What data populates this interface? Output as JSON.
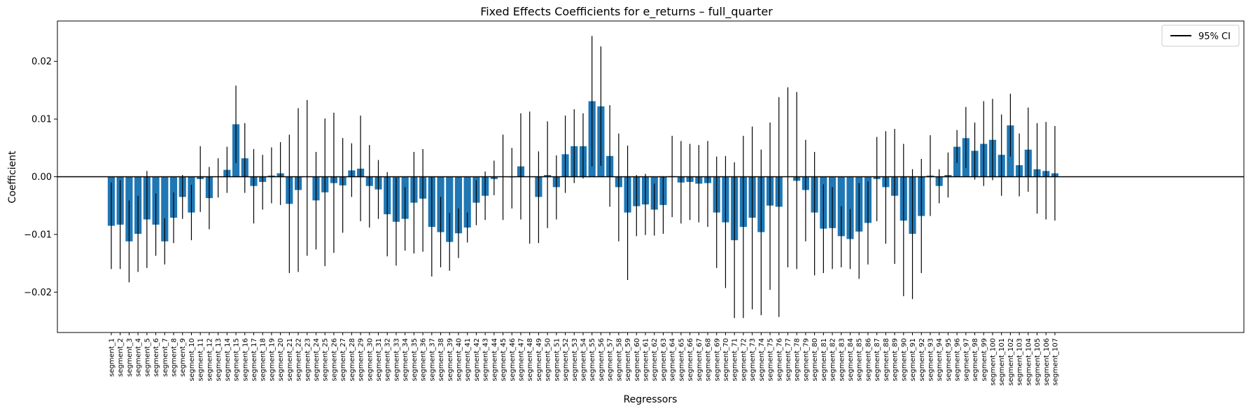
{
  "chart_data": {
    "type": "bar",
    "title": "Fixed Effects Coefficients for e_returns – full_quarter",
    "xlabel": "Regressors",
    "ylabel": "Coefficient",
    "ylim": [
      -0.027,
      0.027
    ],
    "yticks": [
      -0.02,
      -0.01,
      0.0,
      0.01,
      0.02
    ],
    "ytick_labels": [
      "−0.02",
      "−0.01",
      "0.00",
      "0.01",
      "0.02"
    ],
    "bar_color": "#1f77b4",
    "errorbar_color": "#000000",
    "legend": {
      "label": "95% CI",
      "placement": "top-right"
    },
    "categories": [
      "segment_1",
      "segment_2",
      "segment_3",
      "segment_4",
      "segment_5",
      "segment_6",
      "segment_7",
      "segment_8",
      "segment_9",
      "segment_10",
      "segment_11",
      "segment_12",
      "segment_13",
      "segment_14",
      "segment_15",
      "segment_16",
      "segment_17",
      "segment_18",
      "segment_19",
      "segment_20",
      "segment_21",
      "segment_22",
      "segment_23",
      "segment_24",
      "segment_25",
      "segment_26",
      "segment_27",
      "segment_28",
      "segment_29",
      "segment_30",
      "segment_31",
      "segment_32",
      "segment_33",
      "segment_34",
      "segment_35",
      "segment_36",
      "segment_37",
      "segment_38",
      "segment_39",
      "segment_40",
      "segment_41",
      "segment_42",
      "segment_43",
      "segment_44",
      "segment_45",
      "segment_46",
      "segment_47",
      "segment_48",
      "segment_49",
      "segment_50",
      "segment_51",
      "segment_52",
      "segment_53",
      "segment_54",
      "segment_55",
      "segment_56",
      "segment_57",
      "segment_58",
      "segment_59",
      "segment_60",
      "segment_61",
      "segment_62",
      "segment_63",
      "segment_64",
      "segment_65",
      "segment_66",
      "segment_67",
      "segment_68",
      "segment_69",
      "segment_70",
      "segment_71",
      "segment_72",
      "segment_73",
      "segment_74",
      "segment_75",
      "segment_76",
      "segment_77",
      "segment_78",
      "segment_79",
      "segment_80",
      "segment_81",
      "segment_82",
      "segment_83",
      "segment_84",
      "segment_85",
      "segment_86",
      "segment_87",
      "segment_88",
      "segment_89",
      "segment_90",
      "segment_91",
      "segment_92",
      "segment_93",
      "segment_94",
      "segment_95",
      "segment_96",
      "segment_97",
      "segment_98",
      "segment_99",
      "segment_100",
      "segment_101",
      "segment_102",
      "segment_103",
      "segment_104",
      "segment_105",
      "segment_106",
      "segment_107"
    ],
    "values": [
      -0.0085,
      -0.0083,
      -0.0112,
      -0.0099,
      -0.0074,
      -0.0083,
      -0.0112,
      -0.0071,
      -0.0035,
      -0.0062,
      -0.0004,
      -0.0037,
      0.0,
      0.0012,
      0.0091,
      0.0032,
      -0.0016,
      -0.0009,
      0.0002,
      0.0006,
      -0.0047,
      -0.0023,
      0.0,
      -0.0041,
      -0.0027,
      -0.0011,
      -0.0015,
      0.0011,
      0.0014,
      -0.0016,
      -0.0022,
      -0.0065,
      -0.0078,
      -0.0073,
      -0.0045,
      -0.0038,
      -0.0087,
      -0.0096,
      -0.0113,
      -0.0098,
      -0.0088,
      -0.0045,
      -0.0033,
      -0.0004,
      0.0,
      -0.0001,
      0.0018,
      0.0,
      -0.0035,
      0.0003,
      -0.0018,
      0.0039,
      0.0053,
      0.0053,
      0.0131,
      0.0122,
      0.0036,
      -0.0018,
      -0.0062,
      -0.0051,
      -0.0048,
      -0.0057,
      -0.0049,
      0.0001,
      -0.001,
      -0.0009,
      -0.0012,
      -0.0011,
      -0.0062,
      -0.0079,
      -0.011,
      -0.0087,
      -0.0071,
      -0.0096,
      -0.005,
      -0.0052,
      0.0,
      -0.0007,
      -0.0023,
      -0.0062,
      -0.009,
      -0.0089,
      -0.0103,
      -0.0108,
      -0.0095,
      -0.008,
      -0.0004,
      -0.0018,
      -0.0033,
      -0.0076,
      -0.0099,
      -0.0068,
      0.0002,
      -0.0016,
      0.0003,
      0.0052,
      0.0067,
      0.0045,
      0.0057,
      0.0064,
      0.0038,
      0.0089,
      0.002,
      0.0047,
      0.0013,
      0.001,
      0.0006
    ],
    "ci_low": [
      -0.016,
      -0.016,
      -0.0183,
      -0.0165,
      -0.0158,
      -0.0137,
      -0.0152,
      -0.0115,
      -0.0073,
      -0.011,
      -0.0061,
      -0.0091,
      -0.0036,
      -0.0028,
      0.0024,
      -0.0028,
      -0.0081,
      -0.0057,
      -0.0046,
      -0.0049,
      -0.0167,
      -0.0165,
      -0.0137,
      -0.0126,
      -0.0155,
      -0.0132,
      -0.0097,
      -0.0035,
      -0.0077,
      -0.0088,
      -0.0073,
      -0.0138,
      -0.0154,
      -0.0128,
      -0.0133,
      -0.013,
      -0.0173,
      -0.0157,
      -0.0163,
      -0.0141,
      -0.0114,
      -0.0084,
      -0.0075,
      -0.0032,
      -0.0075,
      -0.0055,
      -0.0074,
      -0.0116,
      -0.0115,
      -0.0089,
      -0.0074,
      -0.0028,
      -0.0011,
      -0.0003,
      0.0018,
      0.0019,
      -0.0052,
      -0.0112,
      -0.0179,
      -0.0103,
      -0.0101,
      -0.0102,
      -0.0099,
      -0.007,
      -0.0081,
      -0.0075,
      -0.0079,
      -0.0087,
      -0.0158,
      -0.0193,
      -0.0245,
      -0.0245,
      -0.023,
      -0.024,
      -0.0196,
      -0.0243,
      -0.0157,
      -0.016,
      -0.0112,
      -0.0171,
      -0.0167,
      -0.016,
      -0.0157,
      -0.016,
      -0.0177,
      -0.0152,
      -0.0077,
      -0.0116,
      -0.0151,
      -0.0207,
      -0.0212,
      -0.0167,
      -0.0068,
      -0.0046,
      -0.0036,
      0.0024,
      0.0015,
      -0.0005,
      -0.0016,
      -0.0006,
      -0.0033,
      0.0035,
      -0.0034,
      -0.0026,
      -0.0064,
      -0.0074,
      -0.0076
    ],
    "ci_high": [
      -0.001,
      -0.0006,
      -0.0041,
      -0.0033,
      0.001,
      -0.0029,
      -0.0072,
      -0.0027,
      0.0003,
      -0.0014,
      0.0053,
      0.0017,
      0.0032,
      0.0052,
      0.0158,
      0.0093,
      0.0048,
      0.0038,
      0.0051,
      0.006,
      0.0073,
      0.0119,
      0.0133,
      0.0043,
      0.0101,
      0.0111,
      0.0067,
      0.0058,
      0.0106,
      0.0055,
      0.0029,
      0.0008,
      -0.0002,
      -0.0018,
      0.0043,
      0.0048,
      -0.0001,
      -0.0035,
      -0.0063,
      -0.0055,
      -0.0062,
      -0.0006,
      0.0009,
      0.0028,
      0.0073,
      0.005,
      0.011,
      0.0113,
      0.0044,
      0.0096,
      0.0037,
      0.0106,
      0.0117,
      0.011,
      0.0244,
      0.0226,
      0.0124,
      0.0075,
      0.0054,
      0.0003,
      0.0005,
      -0.0012,
      0.0001,
      0.0071,
      0.0062,
      0.0057,
      0.0055,
      0.0062,
      0.0035,
      0.0036,
      0.0025,
      0.0071,
      0.0087,
      0.0047,
      0.0094,
      0.0138,
      0.0155,
      0.0147,
      0.0064,
      0.0043,
      -0.0013,
      -0.0018,
      -0.0051,
      -0.0056,
      -0.0011,
      -0.0008,
      0.0069,
      0.0079,
      0.0083,
      0.0057,
      0.0013,
      0.0031,
      0.0072,
      0.0013,
      0.0042,
      0.0081,
      0.0121,
      0.0094,
      0.0131,
      0.0135,
      0.0108,
      0.0144,
      0.0075,
      0.012,
      0.0093,
      0.0095,
      0.0088
    ]
  }
}
